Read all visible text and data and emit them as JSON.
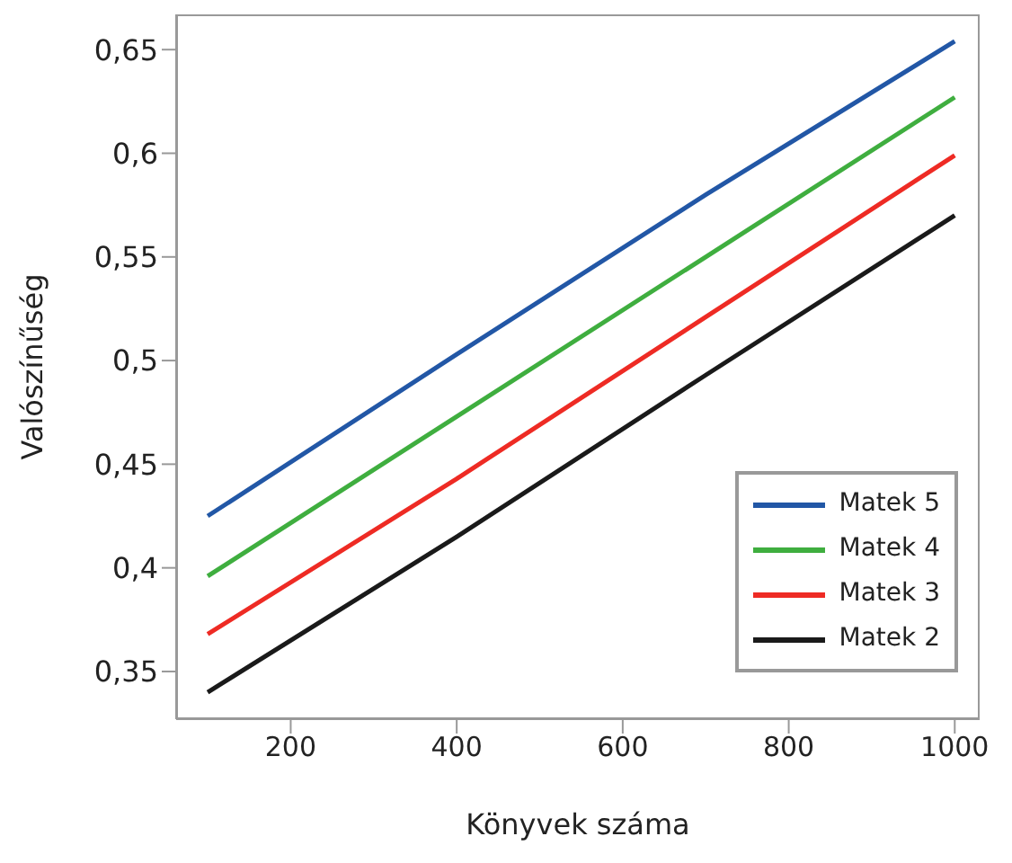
{
  "chart_data": {
    "type": "line",
    "xlabel": "Könyvek száma",
    "ylabel": "Valószínűség",
    "x": [
      100,
      400,
      700,
      1000
    ],
    "series": [
      {
        "name": "Matek 5",
        "color": "#2257a6",
        "values": [
          0.425,
          0.503,
          0.58,
          0.654
        ]
      },
      {
        "name": "Matek 4",
        "color": "#3fae3f",
        "values": [
          0.396,
          0.473,
          0.55,
          0.627
        ]
      },
      {
        "name": "Matek 3",
        "color": "#ee2b24",
        "values": [
          0.368,
          0.443,
          0.521,
          0.599
        ]
      },
      {
        "name": "Matek 2",
        "color": "#1a1a1a",
        "values": [
          0.34,
          0.415,
          0.493,
          0.57
        ]
      }
    ],
    "xlim": [
      62,
      1030
    ],
    "xticks": [
      200,
      400,
      600,
      800,
      1000
    ],
    "ylim": [
      0.327,
      0.667
    ],
    "yticks": [
      {
        "value": 0.35,
        "label": "0,35"
      },
      {
        "value": 0.4,
        "label": "0,4"
      },
      {
        "value": 0.45,
        "label": "0,45"
      },
      {
        "value": 0.5,
        "label": "0,5"
      },
      {
        "value": 0.55,
        "label": "0,55"
      },
      {
        "value": 0.6,
        "label": "0,6"
      },
      {
        "value": 0.65,
        "label": "0,65"
      }
    ],
    "grid": false,
    "legend": "bottom right",
    "marker": "none",
    "line_style": "solid"
  }
}
